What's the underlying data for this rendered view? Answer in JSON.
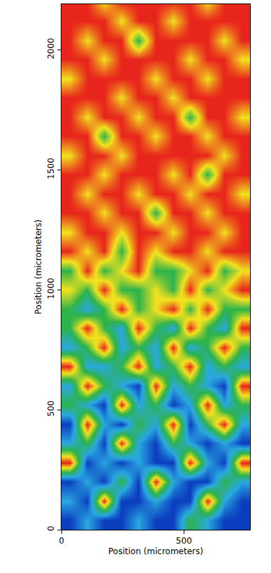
{
  "chart_data": {
    "type": "heatmap",
    "x_label": "Position (micrometers)",
    "y_label": "Position (micrometers)",
    "x": [
      35,
      105,
      175,
      245,
      315,
      385,
      455,
      525,
      595,
      665,
      735
    ],
    "y": [
      40,
      120,
      200,
      280,
      360,
      440,
      520,
      600,
      680,
      760,
      840,
      920,
      1000,
      1080,
      1160,
      1240,
      1320,
      1400,
      1480,
      1560,
      1640,
      1720,
      1800,
      1880,
      1960,
      2040,
      2120,
      2200
    ],
    "z": [
      [
        0,
        1,
        0,
        0,
        1,
        0,
        0,
        2,
        1,
        0,
        0
      ],
      [
        1,
        0,
        4,
        0,
        0,
        1,
        0,
        0,
        4,
        1,
        0
      ],
      [
        0,
        1,
        0,
        2,
        0,
        4,
        1,
        0,
        0,
        2,
        1
      ],
      [
        4,
        0,
        1,
        0,
        1,
        0,
        0,
        4,
        1,
        0,
        4
      ],
      [
        1,
        2,
        0,
        4,
        1,
        0,
        2,
        1,
        0,
        1,
        0
      ],
      [
        0,
        4,
        1,
        0,
        2,
        1,
        4,
        0,
        2,
        4,
        1
      ],
      [
        2,
        1,
        0,
        4,
        1,
        2,
        0,
        1,
        4,
        1,
        2
      ],
      [
        1,
        4,
        2,
        1,
        0,
        4,
        1,
        2,
        1,
        0,
        4
      ],
      [
        4,
        1,
        1,
        2,
        4,
        1,
        2,
        4,
        1,
        2,
        1
      ],
      [
        1,
        2,
        4,
        1,
        2,
        1,
        4,
        1,
        2,
        4,
        2
      ],
      [
        2,
        4,
        2,
        1,
        4,
        2,
        1,
        4,
        2,
        1,
        4
      ],
      [
        2,
        1,
        2,
        4,
        2,
        3,
        4,
        2,
        4,
        2,
        2
      ],
      [
        3,
        2,
        4,
        2,
        2,
        3,
        2,
        4,
        2,
        3,
        4
      ],
      [
        2,
        4,
        2,
        3,
        4,
        2,
        2,
        3,
        4,
        2,
        3
      ],
      [
        4,
        3,
        4,
        2,
        4,
        3,
        4,
        4,
        3,
        4,
        4
      ],
      [
        3,
        4,
        4,
        3,
        4,
        4,
        3,
        4,
        4,
        3,
        4
      ],
      [
        4,
        4,
        3,
        4,
        4,
        2,
        4,
        4,
        3,
        4,
        4
      ],
      [
        4,
        3,
        4,
        4,
        3,
        4,
        4,
        3,
        4,
        4,
        3
      ],
      [
        4,
        4,
        3,
        4,
        4,
        4,
        3,
        4,
        2,
        4,
        4
      ],
      [
        3,
        4,
        4,
        3,
        4,
        4,
        4,
        4,
        4,
        3,
        4
      ],
      [
        4,
        4,
        2,
        4,
        4,
        3,
        4,
        4,
        3,
        4,
        4
      ],
      [
        4,
        3,
        4,
        4,
        3,
        4,
        4,
        2,
        4,
        4,
        3
      ],
      [
        4,
        4,
        4,
        3,
        4,
        4,
        3,
        4,
        4,
        4,
        4
      ],
      [
        3,
        4,
        4,
        4,
        4,
        3,
        4,
        4,
        3,
        4,
        4
      ],
      [
        4,
        4,
        3,
        4,
        4,
        4,
        4,
        3,
        4,
        4,
        3
      ],
      [
        4,
        3,
        4,
        4,
        2,
        4,
        4,
        4,
        4,
        3,
        4
      ],
      [
        4,
        4,
        4,
        3,
        4,
        4,
        3,
        4,
        4,
        4,
        4
      ],
      [
        4,
        4,
        3,
        4,
        4,
        4,
        4,
        4,
        3,
        4,
        4
      ]
    ],
    "zlim": [
      0,
      4
    ],
    "colors": [
      "#0b3dbf",
      "#2aa8e0",
      "#2db34a",
      "#f2e21e",
      "#e8251c"
    ],
    "xlim": [
      0,
      770
    ],
    "ylim": [
      0,
      2190
    ],
    "xticks": [
      0,
      500
    ],
    "yticks": [
      0,
      500,
      1000,
      1500,
      2000
    ]
  }
}
